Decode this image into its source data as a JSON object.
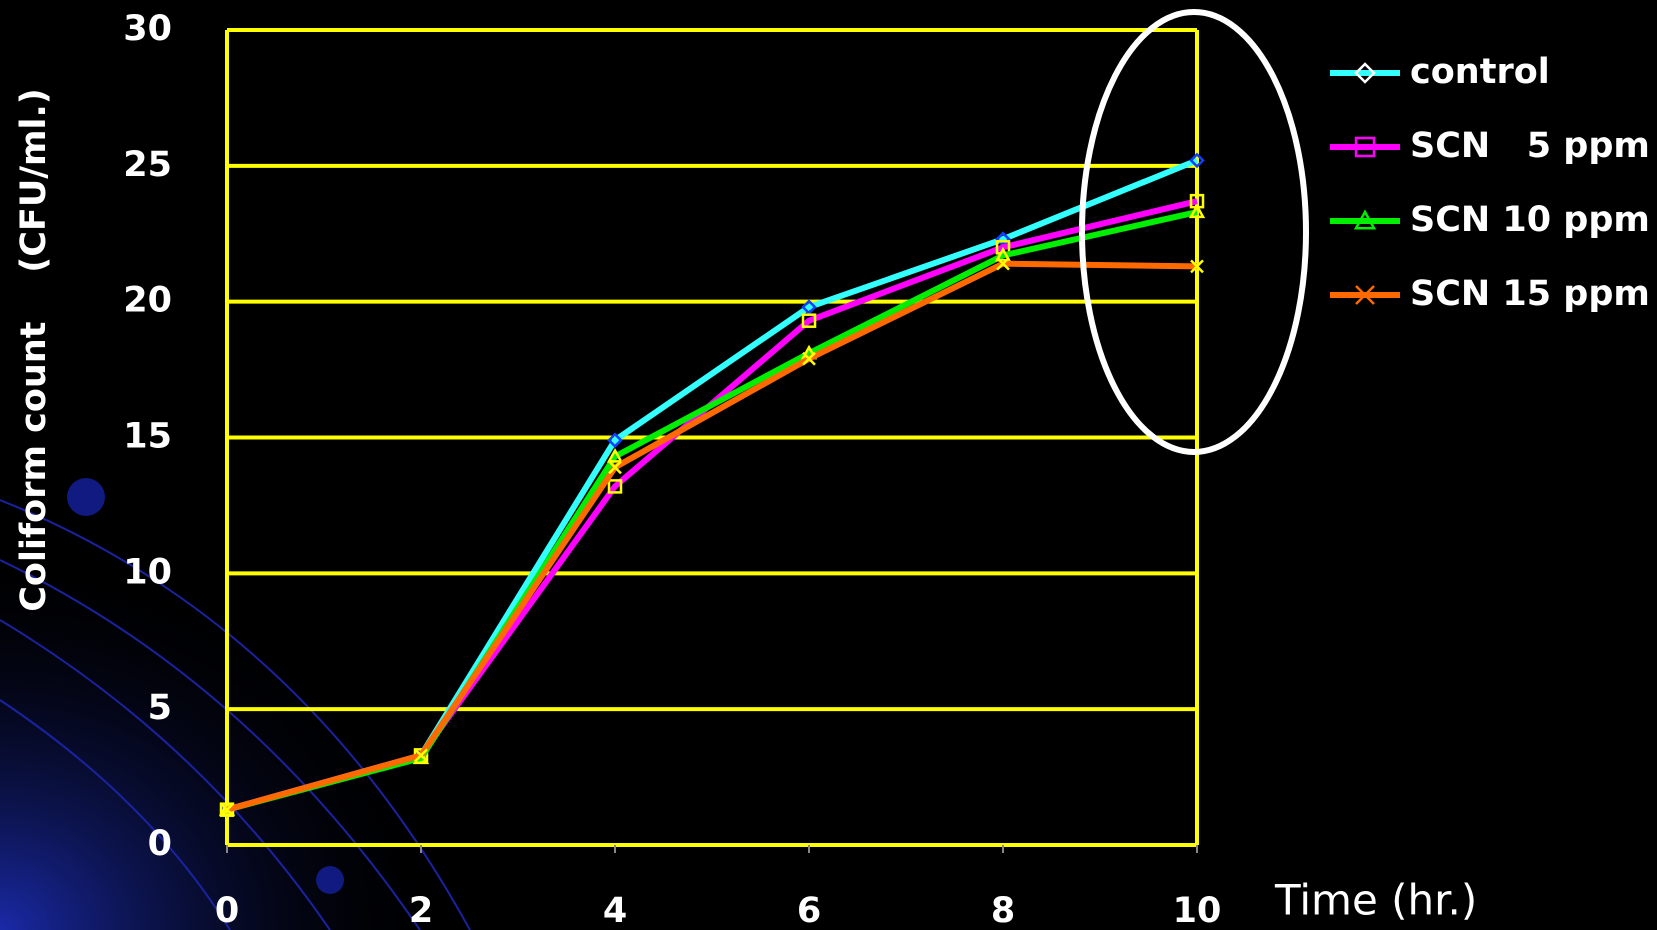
{
  "chart_data": {
    "type": "line",
    "x_label": "Time (hr.)",
    "y_label": "Coliform count    (CFU/ml.)",
    "x": [
      0,
      2,
      4,
      6,
      8,
      10
    ],
    "series": [
      {
        "name": "control",
        "color": "#33ffff",
        "marker": "diamond",
        "values": [
          1.3,
          3.3,
          14.9,
          19.8,
          22.3,
          25.2
        ]
      },
      {
        "name": "SCN   5 ppm",
        "color": "#ff00ff",
        "marker": "square",
        "values": [
          1.3,
          3.3,
          13.2,
          19.3,
          22.0,
          23.7
        ]
      },
      {
        "name": "SCN 10 ppm",
        "color": "#00ee00",
        "marker": "triangle",
        "values": [
          1.3,
          3.2,
          14.3,
          18.1,
          21.7,
          23.3
        ]
      },
      {
        "name": "SCN 15 ppm",
        "color": "#ff6a00",
        "marker": "x",
        "values": [
          1.3,
          3.3,
          13.9,
          17.9,
          21.4,
          21.3
        ]
      }
    ],
    "xlim": [
      0,
      10
    ],
    "xticks": [
      0,
      2,
      4,
      6,
      8,
      10
    ],
    "ylim": [
      0,
      30
    ],
    "yticks": [
      0,
      5,
      10,
      15,
      20,
      25,
      30
    ],
    "grid": true
  }
}
